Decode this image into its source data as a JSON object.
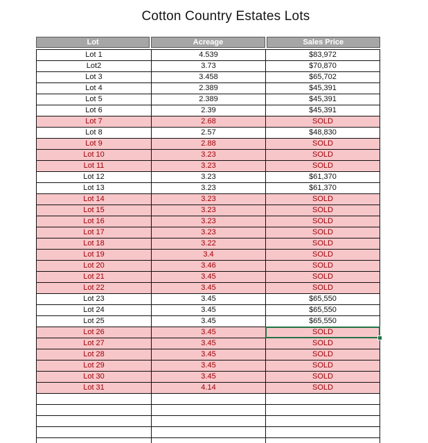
{
  "title": "Cotton Country Estates Lots",
  "columns": [
    "Lot",
    "Acreage",
    "Sales Price"
  ],
  "rows": [
    {
      "lot": "Lot 1",
      "acreage": "4.539",
      "price": "$83,972",
      "sold": false
    },
    {
      "lot": "Lot2",
      "acreage": "3.73",
      "price": "$70,870",
      "sold": false
    },
    {
      "lot": "Lot 3",
      "acreage": "3.458",
      "price": "$65,702",
      "sold": false
    },
    {
      "lot": "Lot 4",
      "acreage": "2.389",
      "price": "$45,391",
      "sold": false
    },
    {
      "lot": "Lot 5",
      "acreage": "2.389",
      "price": "$45,391",
      "sold": false
    },
    {
      "lot": "Lot 6",
      "acreage": "2.39",
      "price": "$45,391",
      "sold": false
    },
    {
      "lot": "Lot 7",
      "acreage": "2.68",
      "price": "SOLD",
      "sold": true
    },
    {
      "lot": "Lot 8",
      "acreage": "2.57",
      "price": "$48,830",
      "sold": false
    },
    {
      "lot": "Lot 9",
      "acreage": "2.88",
      "price": "SOLD",
      "sold": true
    },
    {
      "lot": "Lot 10",
      "acreage": "3.23",
      "price": "SOLD",
      "sold": true
    },
    {
      "lot": "Lot 11",
      "acreage": "3.23",
      "price": "SOLD",
      "sold": true
    },
    {
      "lot": "Lot 12",
      "acreage": "3.23",
      "price": "$61,370",
      "sold": false
    },
    {
      "lot": "Lot 13",
      "acreage": "3.23",
      "price": "$61,370",
      "sold": false
    },
    {
      "lot": "Lot 14",
      "acreage": "3.23",
      "price": "SOLD",
      "sold": true
    },
    {
      "lot": "Lot 15",
      "acreage": "3.23",
      "price": "SOLD",
      "sold": true
    },
    {
      "lot": "Lot 16",
      "acreage": "3.23",
      "price": "SOLD",
      "sold": true
    },
    {
      "lot": "Lot 17",
      "acreage": "3.23",
      "price": "SOLD",
      "sold": true
    },
    {
      "lot": "Lot 18",
      "acreage": "3.22",
      "price": "SOLD",
      "sold": true
    },
    {
      "lot": "Lot 19",
      "acreage": "3.4",
      "price": "SOLD",
      "sold": true
    },
    {
      "lot": "Lot 20",
      "acreage": "3.46",
      "price": "SOLD",
      "sold": true
    },
    {
      "lot": "Lot 21",
      "acreage": "3.45",
      "price": "SOLD",
      "sold": true
    },
    {
      "lot": "Lot 22",
      "acreage": "3.45",
      "price": "SOLD",
      "sold": true
    },
    {
      "lot": "Lot 23",
      "acreage": "3.45",
      "price": "$65,550",
      "sold": false
    },
    {
      "lot": "Lot 24",
      "acreage": "3.45",
      "price": "$65,550",
      "sold": false
    },
    {
      "lot": "Lot 25",
      "acreage": "3.45",
      "price": "$65,550",
      "sold": false
    },
    {
      "lot": "Lot 26",
      "acreage": "3.45",
      "price": "SOLD",
      "sold": true
    },
    {
      "lot": "Lot 27",
      "acreage": "3.45",
      "price": "SOLD",
      "sold": true
    },
    {
      "lot": "Lot 28",
      "acreage": "3.45",
      "price": "SOLD",
      "sold": true
    },
    {
      "lot": "Lot 29",
      "acreage": "3.45",
      "price": "SOLD",
      "sold": true
    },
    {
      "lot": "Lot 30",
      "acreage": "3.45",
      "price": "SOLD",
      "sold": true
    },
    {
      "lot": "Lot 31",
      "acreage": "4.14",
      "price": "SOLD",
      "sold": true
    }
  ],
  "empty_row_count": 5,
  "selection": {
    "row_index": 25,
    "field": "price"
  },
  "colors": {
    "header_fill": "#a6a6a6",
    "header_text": "#ffffff",
    "header_border": "#595959",
    "grid_border": "#111111",
    "sold_fill": "#f7c6c9",
    "sold_text": "#9c0006",
    "selection_green": "#217346"
  }
}
